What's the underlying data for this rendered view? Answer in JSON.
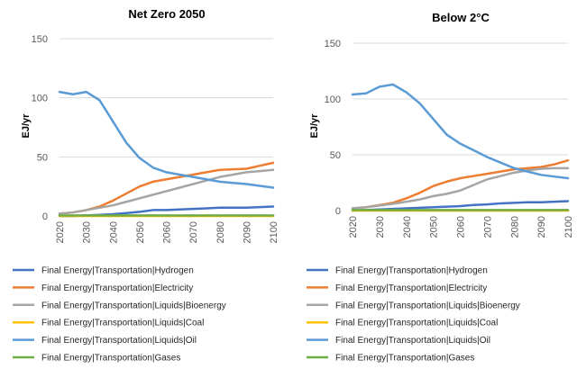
{
  "chart_data": [
    {
      "type": "line",
      "title": "Net Zero 2050",
      "ylabel": "EJ/yr",
      "xlabel": "",
      "ylim": [
        0,
        150
      ],
      "yticks": [
        0,
        50,
        100,
        150
      ],
      "x": [
        2020,
        2025,
        2030,
        2035,
        2040,
        2045,
        2050,
        2055,
        2060,
        2065,
        2070,
        2075,
        2080,
        2085,
        2090,
        2095,
        2100
      ],
      "xticks": [
        2020,
        2030,
        2040,
        2050,
        2060,
        2070,
        2080,
        2090,
        2100
      ],
      "grid": true,
      "legend": "bottom",
      "series": [
        {
          "name": "Final Energy|Transportation|Hydrogen",
          "color": "#4472c4",
          "values": [
            0,
            0,
            0.5,
            1,
            1.5,
            2.5,
            3.5,
            5,
            5,
            5.5,
            6,
            6.5,
            7,
            7,
            7,
            7.5,
            8
          ]
        },
        {
          "name": "Final Energy|Transportation|Electricity",
          "color": "#ed7d31",
          "values": [
            2,
            3,
            5,
            8,
            13,
            19,
            25,
            29,
            31,
            33,
            35,
            37,
            39,
            39.5,
            40,
            42.5,
            45
          ]
        },
        {
          "name": "Final Energy|Transportation|Liquids|Bioenergy",
          "color": "#a5a5a5",
          "values": [
            2,
            3,
            5,
            7,
            9,
            12,
            15,
            18,
            21,
            24,
            27,
            30,
            33,
            35,
            37,
            38,
            39
          ]
        },
        {
          "name": "Final Energy|Transportation|Liquids|Coal",
          "color": "#ffc000",
          "values": [
            0,
            0,
            0,
            0,
            0,
            0,
            0,
            0,
            0,
            0,
            0,
            0,
            0,
            0,
            0,
            0,
            0
          ]
        },
        {
          "name": "Final Energy|Transportation|Liquids|Oil",
          "color": "#5b9bd5",
          "values": [
            105,
            103,
            105,
            98,
            80,
            62,
            49,
            41,
            37,
            35,
            33,
            31,
            29,
            28,
            27,
            25.5,
            24
          ]
        },
        {
          "name": "Final Energy|Transportation|Gases",
          "color": "#70ad47",
          "values": [
            0.5,
            0.5,
            0.5,
            0.5,
            0.5,
            0.5,
            0.5,
            0.5,
            0.5,
            0.5,
            0.5,
            0.5,
            0.5,
            0.5,
            0.5,
            0.5,
            0.5
          ]
        }
      ]
    },
    {
      "type": "line",
      "title": "Below 2°C",
      "ylabel": "EJ/yr",
      "xlabel": "",
      "ylim": [
        0,
        150
      ],
      "yticks": [
        0,
        50,
        100,
        150
      ],
      "x": [
        2020,
        2025,
        2030,
        2035,
        2040,
        2045,
        2050,
        2055,
        2060,
        2065,
        2070,
        2075,
        2080,
        2085,
        2090,
        2095,
        2100
      ],
      "xticks": [
        2020,
        2030,
        2040,
        2050,
        2060,
        2070,
        2080,
        2090,
        2100
      ],
      "grid": true,
      "legend": "bottom",
      "series": [
        {
          "name": "Final Energy|Transportation|Hydrogen",
          "color": "#4472c4",
          "values": [
            0,
            0.5,
            1,
            1.5,
            2,
            2.5,
            3,
            3.5,
            4,
            5,
            5.5,
            6.5,
            7,
            7.5,
            7.5,
            8,
            8.5
          ]
        },
        {
          "name": "Final Energy|Transportation|Electricity",
          "color": "#ed7d31",
          "values": [
            2,
            3,
            5,
            7,
            11,
            16,
            22,
            26,
            29,
            31,
            33,
            35,
            37,
            38,
            39,
            41.5,
            45
          ]
        },
        {
          "name": "Final Energy|Transportation|Liquids|Bioenergy",
          "color": "#a5a5a5",
          "values": [
            2,
            3,
            4.5,
            6,
            8,
            10,
            13,
            15,
            18,
            23,
            28,
            31,
            34,
            36,
            37.5,
            38,
            38
          ]
        },
        {
          "name": "Final Energy|Transportation|Liquids|Coal",
          "color": "#ffc000",
          "values": [
            0,
            0,
            0,
            0,
            0,
            0,
            0,
            0,
            0,
            0,
            0,
            0,
            0,
            0,
            0,
            0,
            0
          ]
        },
        {
          "name": "Final Energy|Transportation|Liquids|Oil",
          "color": "#5b9bd5",
          "values": [
            104,
            105,
            111,
            113,
            106,
            96,
            82,
            68,
            60,
            54,
            48,
            43,
            38,
            35,
            32,
            30.5,
            29
          ]
        },
        {
          "name": "Final Energy|Transportation|Gases",
          "color": "#70ad47",
          "values": [
            0.5,
            0.5,
            0.5,
            0.5,
            0.5,
            0.5,
            0.5,
            0.5,
            0.5,
            0.5,
            0.5,
            0.5,
            0.5,
            0.5,
            0.5,
            0.5,
            0.5
          ]
        }
      ]
    }
  ]
}
